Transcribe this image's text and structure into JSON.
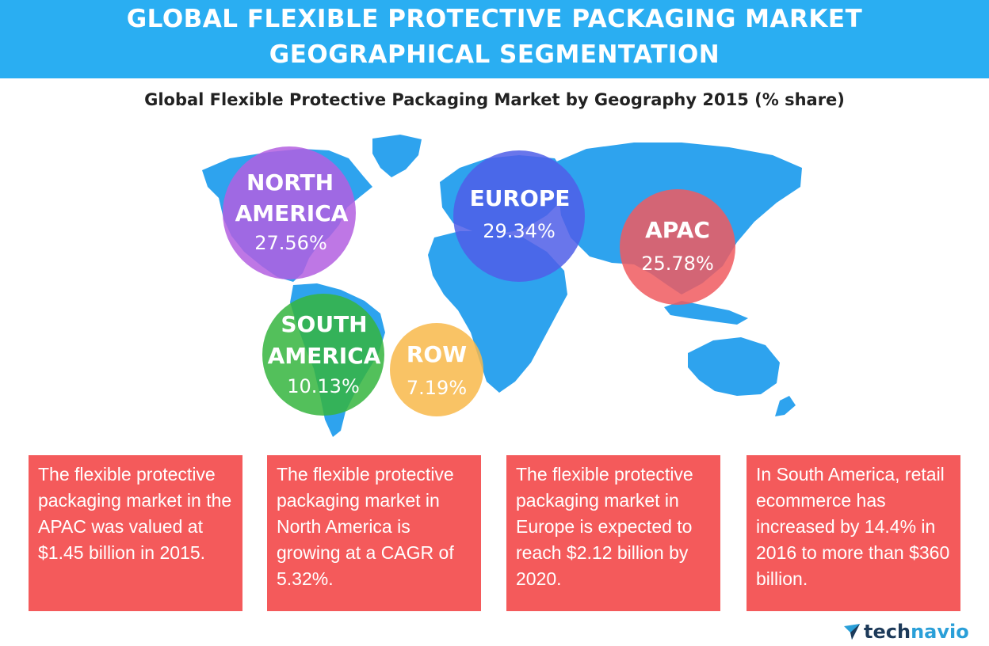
{
  "header": {
    "title_line1": "GLOBAL FLEXIBLE PROTECTIVE PACKAGING MARKET",
    "title_line2": "GEOGRAPHICAL SEGMENTATION"
  },
  "chart_data": {
    "type": "bubble-map",
    "title": "Global Flexible Protective Packaging Market by Geography 2015 (% share)",
    "unit": "%",
    "series": [
      {
        "name": "NORTH AMERICA",
        "value": 27.56,
        "label": "27.56%",
        "color": "#b35fe0"
      },
      {
        "name": "EUROPE",
        "value": 29.34,
        "label": "29.34%",
        "color": "#4f5ee8"
      },
      {
        "name": "APAC",
        "value": 25.78,
        "label": "25.78%",
        "color": "#f05a5f"
      },
      {
        "name": "SOUTH AMERICA",
        "value": 10.13,
        "label": "10.13%",
        "color": "#35b53e"
      },
      {
        "name": "ROW",
        "value": 7.19,
        "label": "7.19%",
        "color": "#f8b84a"
      }
    ]
  },
  "facts": [
    "The flexible protective packaging market in the APAC was valued at $1.45 billion in 2015.",
    "The flexible protective packaging market in North America is growing at a CAGR of 5.32%.",
    "The flexible protective packaging market in Europe is expected to reach $2.12 billion by 2020.",
    "In South America, retail ecommerce has increased by 14.4% in 2016 to more than $360 billion."
  ],
  "logo": {
    "part1": "tech",
    "part2": "navio"
  },
  "colors": {
    "banner": "#2aaef2",
    "map": "#2ea3ee",
    "fact_box": "#f45a5b"
  }
}
